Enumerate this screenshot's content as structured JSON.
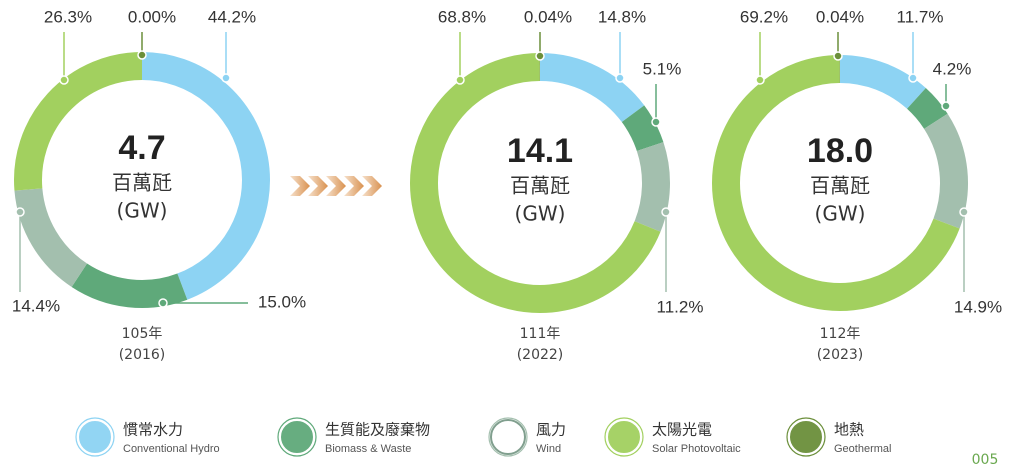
{
  "chart_data": [
    {
      "type": "donut",
      "center": "4.7",
      "unit": "百萬瓩",
      "unit_en": "(GW)",
      "year": "105年",
      "year_ad": "(2016)",
      "values": [
        44.2,
        15.0,
        14.4,
        26.3,
        0.0
      ],
      "value_labels": [
        "44.2%",
        "15.0%",
        "14.4%",
        "26.3%",
        "0.00%"
      ]
    },
    {
      "type": "donut",
      "center": "14.1",
      "unit": "百萬瓩",
      "unit_en": "(GW)",
      "year": "111年",
      "year_ad": "(2022)",
      "values": [
        14.8,
        5.1,
        11.2,
        68.8,
        0.04
      ],
      "value_labels": [
        "14.8%",
        "5.1%",
        "11.2%",
        "68.8%",
        "0.04%"
      ]
    },
    {
      "type": "donut",
      "center": "18.0",
      "unit": "百萬瓩",
      "unit_en": "(GW)",
      "year": "112年",
      "year_ad": "(2023)",
      "values": [
        11.7,
        4.2,
        14.9,
        69.2,
        0.04
      ],
      "value_labels": [
        "11.7%",
        "4.2%",
        "14.9%",
        "69.2%",
        "0.04%"
      ]
    }
  ],
  "legend": [
    {
      "name": "慣常水力",
      "name_en": "Conventional Hydro",
      "color": "#8dd3f3"
    },
    {
      "name": "生質能及廢棄物",
      "name_en": "Biomass & Waste",
      "color": "#5fa97a"
    },
    {
      "name": "風力",
      "name_en": "Wind",
      "color": "#a3bfae"
    },
    {
      "name": "太陽光電",
      "name_en": "Solar Photovoltaic",
      "color": "#a2d05f"
    },
    {
      "name": "地熱",
      "name_en": "Geothermal",
      "color": "#6b8f3a"
    }
  ],
  "page_number": "005"
}
